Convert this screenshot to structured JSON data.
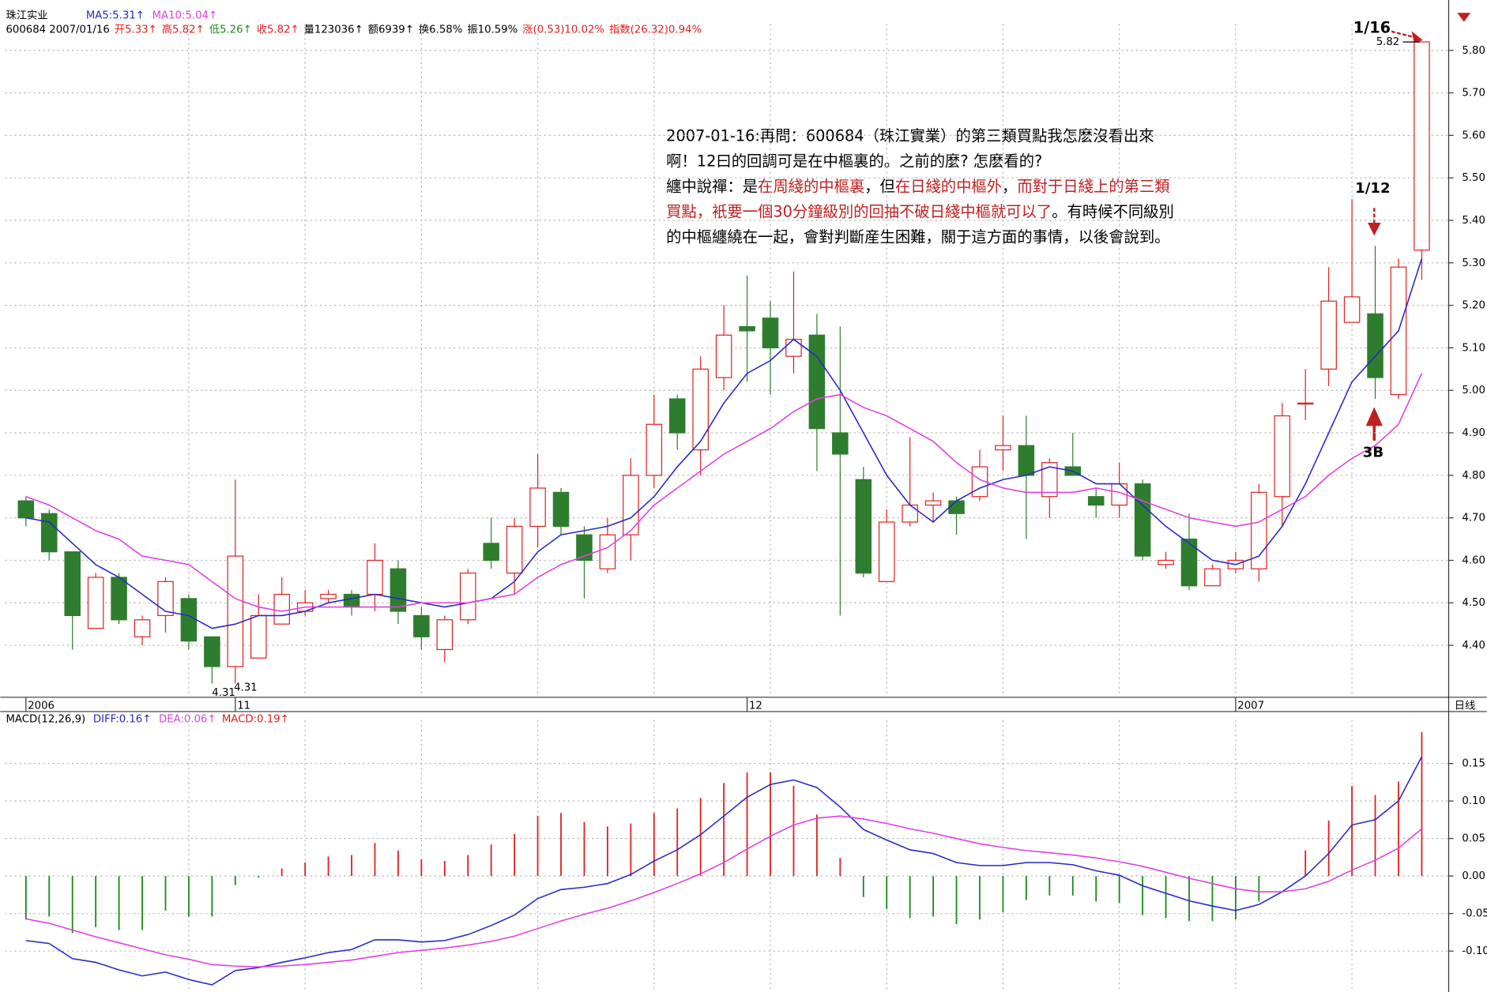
{
  "chart_data": [
    {
      "type": "candlestick",
      "title": "珠江实业",
      "info": [
        {
          "text": "600684 2007/01/16",
          "color": "#000000"
        },
        {
          "text": "开5.33↑",
          "color": "#e02020"
        },
        {
          "text": "高5.82↑",
          "color": "#e02020"
        },
        {
          "text": "低5.26↑",
          "color": "#1a8a1a"
        },
        {
          "text": "收5.82↑",
          "color": "#e02020"
        },
        {
          "text": "量123036↑",
          "color": "#000000"
        },
        {
          "text": "额6939↑",
          "color": "#000000"
        },
        {
          "text": "换6.58%",
          "color": "#000000"
        },
        {
          "text": "振10.59%",
          "color": "#000000"
        },
        {
          "text": "涨(0.53)10.02%",
          "color": "#e02020"
        },
        {
          "text": "指数(26.32)0.94%",
          "color": "#e02020"
        }
      ],
      "categories": [
        "2006",
        null,
        null,
        null,
        null,
        null,
        null,
        null,
        null,
        "11",
        null,
        null,
        null,
        null,
        null,
        null,
        null,
        null,
        null,
        null,
        null,
        null,
        null,
        null,
        null,
        null,
        null,
        null,
        null,
        null,
        null,
        "12",
        null,
        null,
        null,
        null,
        null,
        null,
        null,
        null,
        null,
        null,
        null,
        null,
        null,
        null,
        null,
        null,
        null,
        null,
        null,
        null,
        "2007",
        null,
        null,
        null,
        null,
        null,
        null,
        null,
        null
      ],
      "open": [
        4.74,
        4.71,
        4.62,
        4.44,
        4.56,
        4.42,
        4.47,
        4.51,
        4.42,
        4.35,
        4.37,
        4.45,
        4.48,
        4.51,
        4.52,
        4.52,
        4.58,
        4.47,
        4.39,
        4.46,
        4.64,
        4.57,
        4.68,
        4.76,
        4.66,
        4.58,
        4.66,
        4.8,
        4.98,
        4.86,
        5.03,
        5.15,
        5.17,
        5.08,
        5.13,
        4.9,
        4.79,
        4.55,
        4.69,
        4.73,
        4.74,
        4.75,
        4.86,
        4.87,
        4.75,
        4.82,
        4.75,
        4.73,
        4.78,
        4.59,
        4.65,
        4.54,
        4.58,
        4.58,
        4.75,
        4.97,
        5.05,
        5.16,
        5.18,
        4.99,
        5.33
      ],
      "high": [
        4.75,
        4.72,
        4.62,
        4.57,
        4.57,
        4.47,
        4.56,
        4.52,
        4.42,
        4.79,
        4.52,
        4.56,
        4.53,
        4.53,
        4.53,
        4.64,
        4.6,
        4.49,
        4.47,
        4.58,
        4.7,
        4.7,
        4.85,
        4.77,
        4.68,
        4.7,
        4.84,
        4.99,
        4.99,
        5.08,
        5.2,
        5.27,
        5.21,
        5.28,
        5.18,
        5.15,
        4.82,
        4.72,
        4.89,
        4.76,
        4.75,
        4.86,
        4.94,
        4.94,
        4.84,
        4.9,
        4.77,
        4.83,
        4.79,
        4.62,
        4.71,
        4.59,
        4.62,
        4.78,
        4.97,
        5.05,
        5.29,
        5.45,
        5.34,
        5.31,
        5.82
      ],
      "low": [
        4.68,
        4.6,
        4.39,
        4.44,
        4.45,
        4.4,
        4.43,
        4.39,
        4.31,
        4.31,
        4.37,
        4.45,
        4.47,
        4.5,
        4.47,
        4.48,
        4.45,
        4.39,
        4.36,
        4.45,
        4.58,
        4.52,
        4.63,
        4.66,
        4.51,
        4.57,
        4.6,
        4.77,
        4.86,
        4.8,
        5.0,
        5.02,
        4.99,
        5.04,
        4.81,
        4.47,
        4.56,
        4.55,
        4.68,
        4.69,
        4.66,
        4.74,
        4.81,
        4.65,
        4.7,
        4.8,
        4.7,
        4.7,
        4.6,
        4.58,
        4.53,
        4.54,
        4.57,
        4.55,
        4.68,
        4.93,
        5.01,
        5.16,
        4.98,
        4.98,
        5.26
      ],
      "close": [
        4.7,
        4.62,
        4.47,
        4.56,
        4.46,
        4.46,
        4.55,
        4.41,
        4.35,
        4.61,
        4.47,
        4.52,
        4.5,
        4.52,
        4.49,
        4.6,
        4.48,
        4.42,
        4.46,
        4.57,
        4.6,
        4.68,
        4.77,
        4.68,
        4.6,
        4.66,
        4.8,
        4.92,
        4.9,
        5.05,
        5.13,
        5.14,
        5.1,
        5.12,
        4.91,
        4.85,
        4.57,
        4.69,
        4.73,
        4.74,
        4.71,
        4.82,
        4.87,
        4.8,
        4.83,
        4.8,
        4.73,
        4.78,
        4.61,
        4.6,
        4.54,
        4.58,
        4.6,
        4.76,
        4.94,
        4.97,
        5.21,
        5.22,
        5.03,
        5.29,
        5.82
      ],
      "up_color": "#e02020",
      "down_color": "#2e7d2e",
      "lines": [
        {
          "name": "MA5:5.31↑",
          "color": "#2828c8",
          "values": [
            4.7,
            4.69,
            4.64,
            4.59,
            4.56,
            4.52,
            4.48,
            4.47,
            4.44,
            4.45,
            4.47,
            4.47,
            4.48,
            4.5,
            4.51,
            4.52,
            4.51,
            4.5,
            4.49,
            4.5,
            4.51,
            4.55,
            4.62,
            4.66,
            4.67,
            4.68,
            4.7,
            4.75,
            4.82,
            4.88,
            4.97,
            5.04,
            5.07,
            5.12,
            5.08,
            5.0,
            4.9,
            4.8,
            4.73,
            4.69,
            4.74,
            4.77,
            4.79,
            4.8,
            4.82,
            4.81,
            4.78,
            4.78,
            4.73,
            4.68,
            4.64,
            4.6,
            4.59,
            4.61,
            4.68,
            4.78,
            4.9,
            5.02,
            5.08,
            5.14,
            5.31
          ]
        },
        {
          "name": "MA10:5.04↑",
          "color": "#e040e0",
          "values": [
            4.75,
            4.73,
            4.7,
            4.67,
            4.65,
            4.61,
            4.6,
            4.59,
            4.55,
            4.51,
            4.49,
            4.48,
            4.49,
            4.49,
            4.49,
            4.49,
            4.49,
            4.5,
            4.5,
            4.5,
            4.51,
            4.52,
            4.56,
            4.59,
            4.61,
            4.63,
            4.67,
            4.73,
            4.77,
            4.81,
            4.85,
            4.88,
            4.91,
            4.95,
            4.98,
            4.99,
            4.96,
            4.94,
            4.91,
            4.88,
            4.83,
            4.79,
            4.77,
            4.76,
            4.76,
            4.76,
            4.77,
            4.76,
            4.74,
            4.72,
            4.7,
            4.69,
            4.68,
            4.69,
            4.72,
            4.75,
            4.8,
            4.84,
            4.87,
            4.92,
            5.04
          ]
        }
      ],
      "ylim": [
        4.28,
        5.84
      ],
      "yticks": [
        {
          "value": 4.4,
          "label": "4.40"
        },
        {
          "value": 4.5,
          "label": "4.50"
        },
        {
          "value": 4.6,
          "label": "4.60"
        },
        {
          "value": 4.7,
          "label": "4.70"
        },
        {
          "value": 4.8,
          "label": "4.80"
        },
        {
          "value": 4.9,
          "label": "4.90"
        },
        {
          "value": 5.0,
          "label": "5.00"
        },
        {
          "value": 5.1,
          "label": "5.10"
        },
        {
          "value": 5.2,
          "label": "5.20"
        },
        {
          "value": 5.3,
          "label": "5.30"
        },
        {
          "value": 5.4,
          "label": "5.40"
        },
        {
          "value": 5.5,
          "label": "5.50"
        },
        {
          "value": 5.6,
          "label": "5.60"
        },
        {
          "value": 5.7,
          "label": "5.70"
        },
        {
          "value": 5.8,
          "label": "5.80"
        }
      ],
      "grid": true,
      "period_label": "日线",
      "high_label": "5.82",
      "low_labels": [
        "4.31",
        "4.31"
      ],
      "annotations": [
        "1/16",
        "1/12",
        "3B"
      ],
      "note": [
        [
          {
            "text": "2007-01-16:再問：600684（珠江實業）的第三類買點我怎麽沒看出來",
            "color": "#000000"
          }
        ],
        [
          {
            "text": "啊！12曰的回調可是在中樞裏的。之前的麼? 怎麽看的?",
            "color": "#000000"
          }
        ],
        [
          {
            "text": "纏中說禪：是",
            "color": "#000000"
          },
          {
            "text": "在周綫的中樞裏",
            "color": "#c02020"
          },
          {
            "text": "，但",
            "color": "#000000"
          },
          {
            "text": "在日綫的中樞外",
            "color": "#c02020"
          },
          {
            "text": "，",
            "color": "#000000"
          },
          {
            "text": "而對于日綫上的第三類",
            "color": "#c02020"
          }
        ],
        [
          {
            "text": "買點，衹要一個30分鐘級別的回抽不破日綫中樞就可以了",
            "color": "#c02020"
          },
          {
            "text": "。有時候不同級別",
            "color": "#000000"
          }
        ],
        [
          {
            "text": "的中樞纏繞在一起，會對判斷産生困難，關于這方面的事情，以後會說到。",
            "color": "#000000"
          }
        ]
      ]
    },
    {
      "type": "macd",
      "title": "MACD(12,26,9)",
      "series": [
        {
          "name": "DIFF:0.16↑",
          "color": "#2828c8",
          "values": [
            -0.086,
            -0.09,
            -0.11,
            -0.115,
            -0.125,
            -0.133,
            -0.128,
            -0.138,
            -0.145,
            -0.126,
            -0.122,
            -0.115,
            -0.109,
            -0.102,
            -0.098,
            -0.085,
            -0.085,
            -0.088,
            -0.086,
            -0.078,
            -0.066,
            -0.052,
            -0.03,
            -0.018,
            -0.015,
            -0.01,
            0.002,
            0.02,
            0.035,
            0.055,
            0.08,
            0.105,
            0.122,
            0.128,
            0.118,
            0.092,
            0.062,
            0.048,
            0.035,
            0.03,
            0.018,
            0.014,
            0.014,
            0.018,
            0.018,
            0.015,
            0.007,
            0.001,
            -0.013,
            -0.023,
            -0.033,
            -0.04,
            -0.046,
            -0.038,
            -0.021,
            0.0,
            0.03,
            0.068,
            0.075,
            0.1,
            0.159
          ]
        },
        {
          "name": "DEA:0.06↑",
          "color": "#e040e0",
          "values": [
            -0.057,
            -0.063,
            -0.072,
            -0.081,
            -0.089,
            -0.097,
            -0.105,
            -0.111,
            -0.118,
            -0.12,
            -0.121,
            -0.12,
            -0.118,
            -0.115,
            -0.112,
            -0.107,
            -0.102,
            -0.099,
            -0.096,
            -0.092,
            -0.087,
            -0.08,
            -0.07,
            -0.06,
            -0.051,
            -0.043,
            -0.033,
            -0.022,
            -0.01,
            0.003,
            0.018,
            0.036,
            0.053,
            0.068,
            0.077,
            0.08,
            0.076,
            0.07,
            0.063,
            0.057,
            0.05,
            0.043,
            0.038,
            0.034,
            0.031,
            0.028,
            0.024,
            0.019,
            0.013,
            0.005,
            -0.003,
            -0.01,
            -0.017,
            -0.021,
            -0.021,
            -0.017,
            -0.007,
            0.008,
            0.021,
            0.037,
            0.063
          ]
        }
      ],
      "bars": {
        "name": "MACD:0.19↑",
        "up_color": "#e02020",
        "down_color": "#1a8a1a",
        "values": [
          -0.058,
          -0.054,
          -0.076,
          -0.068,
          -0.072,
          -0.072,
          -0.046,
          -0.054,
          -0.054,
          -0.012,
          -0.002,
          0.01,
          0.018,
          0.026,
          0.028,
          0.044,
          0.034,
          0.022,
          0.02,
          0.028,
          0.042,
          0.056,
          0.08,
          0.084,
          0.072,
          0.066,
          0.07,
          0.084,
          0.09,
          0.104,
          0.124,
          0.138,
          0.138,
          0.12,
          0.082,
          0.024,
          -0.028,
          -0.044,
          -0.056,
          -0.054,
          -0.064,
          -0.058,
          -0.048,
          -0.032,
          -0.026,
          -0.026,
          -0.034,
          -0.036,
          -0.052,
          -0.056,
          -0.06,
          -0.06,
          -0.058,
          -0.034,
          0.0,
          0.034,
          0.074,
          0.12,
          0.108,
          0.126,
          0.192
        ]
      },
      "ylim": [
        -0.152,
        0.195
      ],
      "yticks": [
        {
          "value": -0.1,
          "label": "-0.10"
        },
        {
          "value": -0.05,
          "label": "-0.05"
        },
        {
          "value": 0,
          "label": "0.00"
        },
        {
          "value": 0.05,
          "label": "0.05"
        },
        {
          "value": 0.1,
          "label": "0.10"
        },
        {
          "value": 0.15,
          "label": "0.15"
        }
      ],
      "grid": true
    }
  ]
}
